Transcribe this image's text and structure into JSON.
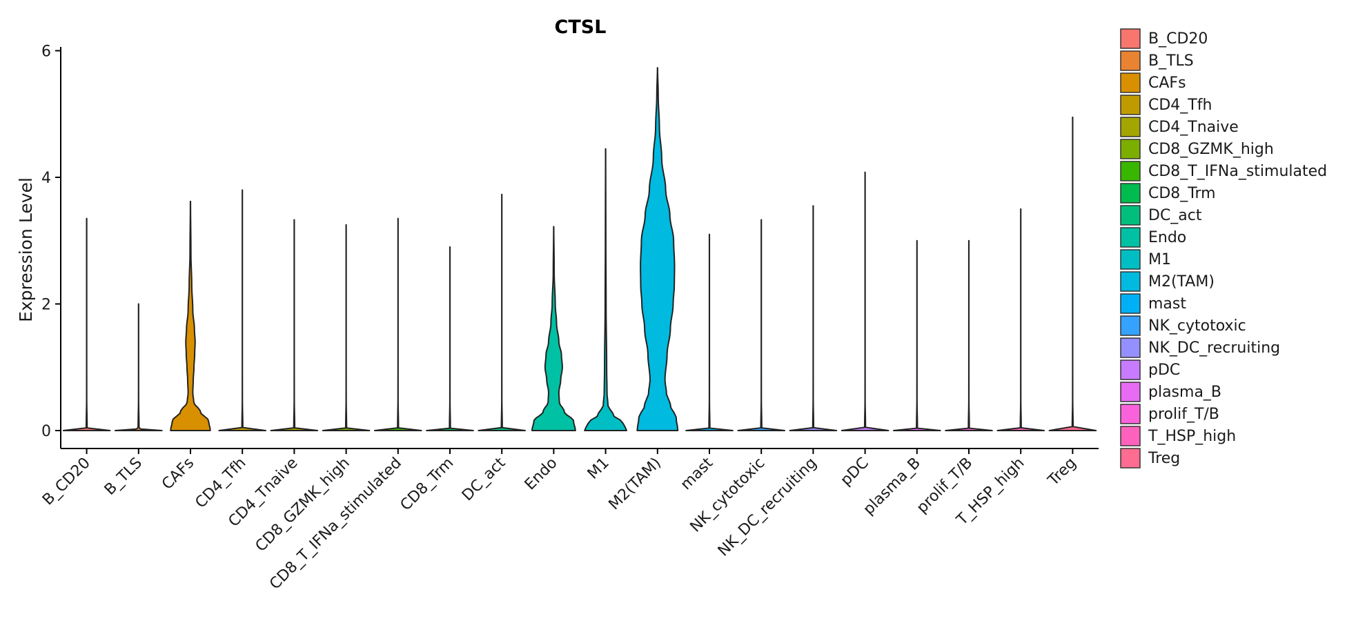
{
  "chart_data": {
    "type": "violin",
    "title": "CTSL",
    "xlabel": "",
    "ylabel": "Expression Level",
    "ylim": [
      -0.3,
      6.1
    ],
    "yticks": [
      0,
      2,
      4,
      6
    ],
    "grid": false,
    "legend_position": "right",
    "categories": [
      "B_CD20",
      "B_TLS",
      "CAFs",
      "CD4_Tfh",
      "CD4_Tnaive",
      "CD8_GZMK_high",
      "CD8_T_IFNa_stimulated",
      "CD8_Trm",
      "DC_act",
      "Endo",
      "M1",
      "M2(TAM)",
      "mast",
      "NK_cytotoxic",
      "NK_DC_recruiting",
      "pDC",
      "plasma_B",
      "prolif_T/B",
      "T_HSP_high",
      "Treg"
    ],
    "colors": [
      "#F8766D",
      "#EA8331",
      "#D89000",
      "#C09B00",
      "#A3A500",
      "#7CAE00",
      "#39B600",
      "#00BB4E",
      "#00BF7D",
      "#00C1A3",
      "#00BFC4",
      "#00BAE0",
      "#00B0F6",
      "#35A2FF",
      "#9590FF",
      "#C77CFF",
      "#E76BF3",
      "#FA62DB",
      "#FF62BC",
      "#FF6C91"
    ],
    "max_values": [
      3.35,
      2.0,
      3.62,
      3.8,
      3.33,
      3.25,
      3.35,
      2.9,
      3.73,
      3.22,
      4.45,
      5.73,
      3.1,
      3.33,
      3.55,
      4.08,
      3.0,
      3.0,
      3.5,
      4.95
    ],
    "density_profiles": [
      [
        [
          0,
          1
        ],
        [
          0.03,
          0.02
        ],
        [
          0.5,
          0.003
        ],
        [
          1,
          0.002
        ]
      ],
      [
        [
          0,
          1
        ],
        [
          0.03,
          0.02
        ],
        [
          0.5,
          0.003
        ],
        [
          1,
          0.002
        ]
      ],
      [
        [
          0,
          0.85
        ],
        [
          0.15,
          0.78
        ],
        [
          0.3,
          0.42
        ],
        [
          0.45,
          0.14
        ],
        [
          0.6,
          0.1
        ],
        [
          0.8,
          0.12
        ],
        [
          1.0,
          0.15
        ],
        [
          1.2,
          0.18
        ],
        [
          1.4,
          0.2
        ],
        [
          1.6,
          0.17
        ],
        [
          1.9,
          0.1
        ],
        [
          2.3,
          0.055
        ],
        [
          2.8,
          0.02
        ],
        [
          3.62,
          0.003
        ]
      ],
      [
        [
          0,
          1
        ],
        [
          0.03,
          0.02
        ],
        [
          0.5,
          0.003
        ],
        [
          1,
          0.002
        ]
      ],
      [
        [
          0,
          1
        ],
        [
          0.03,
          0.02
        ],
        [
          0.5,
          0.003
        ],
        [
          1,
          0.002
        ]
      ],
      [
        [
          0,
          1
        ],
        [
          0.03,
          0.02
        ],
        [
          0.5,
          0.003
        ],
        [
          1,
          0.002
        ]
      ],
      [
        [
          0,
          1
        ],
        [
          0.03,
          0.02
        ],
        [
          0.5,
          0.003
        ],
        [
          1,
          0.002
        ]
      ],
      [
        [
          0,
          1
        ],
        [
          0.03,
          0.02
        ],
        [
          0.5,
          0.003
        ],
        [
          1,
          0.002
        ]
      ],
      [
        [
          0,
          1
        ],
        [
          0.03,
          0.02
        ],
        [
          0.5,
          0.003
        ],
        [
          1,
          0.002
        ]
      ],
      [
        [
          0,
          0.93
        ],
        [
          0.15,
          0.85
        ],
        [
          0.3,
          0.45
        ],
        [
          0.45,
          0.24
        ],
        [
          0.6,
          0.22
        ],
        [
          0.8,
          0.3
        ],
        [
          1.0,
          0.37
        ],
        [
          1.2,
          0.33
        ],
        [
          1.4,
          0.22
        ],
        [
          1.7,
          0.12
        ],
        [
          2.0,
          0.065
        ],
        [
          2.5,
          0.02
        ],
        [
          3.22,
          0.003
        ]
      ],
      [
        [
          0,
          0.9
        ],
        [
          0.12,
          0.75
        ],
        [
          0.25,
          0.32
        ],
        [
          0.4,
          0.1
        ],
        [
          0.6,
          0.06
        ],
        [
          1.0,
          0.045
        ],
        [
          2.0,
          0.02
        ],
        [
          3.0,
          0.01
        ],
        [
          4.45,
          0.003
        ]
      ],
      [
        [
          0,
          0.87
        ],
        [
          0.2,
          0.8
        ],
        [
          0.4,
          0.55
        ],
        [
          0.6,
          0.38
        ],
        [
          0.8,
          0.32
        ],
        [
          1.2,
          0.41
        ],
        [
          1.6,
          0.55
        ],
        [
          2.0,
          0.67
        ],
        [
          2.3,
          0.72
        ],
        [
          2.6,
          0.73
        ],
        [
          3.0,
          0.69
        ],
        [
          3.4,
          0.53
        ],
        [
          3.8,
          0.35
        ],
        [
          4.3,
          0.18
        ],
        [
          4.8,
          0.08
        ],
        [
          5.3,
          0.03
        ],
        [
          5.73,
          0.003
        ]
      ],
      [
        [
          0,
          1
        ],
        [
          0.03,
          0.02
        ],
        [
          0.5,
          0.003
        ],
        [
          1,
          0.002
        ]
      ],
      [
        [
          0,
          1
        ],
        [
          0.03,
          0.02
        ],
        [
          0.5,
          0.003
        ],
        [
          1,
          0.002
        ]
      ],
      [
        [
          0,
          1
        ],
        [
          0.03,
          0.02
        ],
        [
          0.5,
          0.003
        ],
        [
          1,
          0.002
        ]
      ],
      [
        [
          0,
          1
        ],
        [
          0.03,
          0.02
        ],
        [
          0.5,
          0.003
        ],
        [
          1,
          0.002
        ]
      ],
      [
        [
          0,
          1
        ],
        [
          0.03,
          0.02
        ],
        [
          0.5,
          0.003
        ],
        [
          1,
          0.002
        ]
      ],
      [
        [
          0,
          1
        ],
        [
          0.03,
          0.02
        ],
        [
          0.5,
          0.003
        ],
        [
          1,
          0.002
        ]
      ],
      [
        [
          0,
          1
        ],
        [
          0.03,
          0.02
        ],
        [
          0.5,
          0.003
        ],
        [
          1,
          0.002
        ]
      ],
      [
        [
          0,
          1
        ],
        [
          0.03,
          0.02
        ],
        [
          0.5,
          0.003
        ],
        [
          1,
          0.002
        ]
      ]
    ]
  }
}
